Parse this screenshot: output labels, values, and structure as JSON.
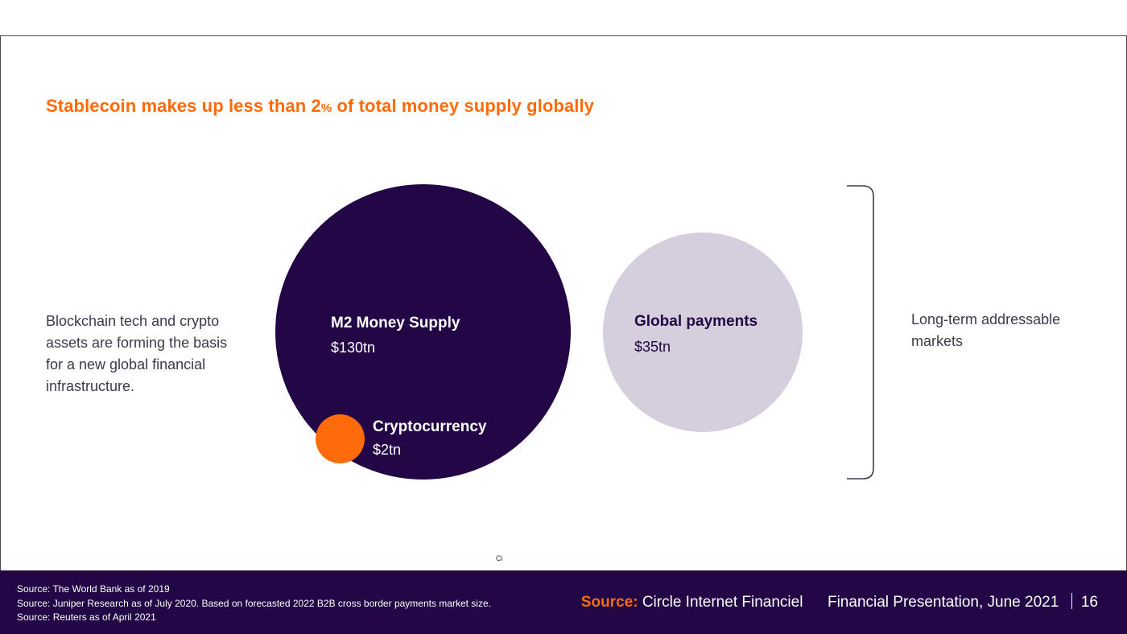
{
  "slide": {
    "headline_before": "Stablecoin makes up less than 2",
    "headline_pct": "%",
    "headline_after": " of total money supply globally",
    "intro_text": "Blockchain tech and crypto assets are forming the basis for a new global financial infrastructure.",
    "bubbles": {
      "m2": {
        "title": "M2 Money Supply",
        "value": "$130tn"
      },
      "crypto": {
        "title": "Cryptocurrency",
        "value": "$2tn"
      },
      "payments": {
        "title": "Global payments",
        "value": "$35tn"
      }
    },
    "bracket_label": "Long-term addressable markets",
    "tiny_mark": "Ci"
  },
  "footer": {
    "sources": [
      "Source: The World Bank as of 2019",
      "Source: Juniper Research as of July 2020. Based on forecasted 2022 B2B cross border payments market size.",
      "Source: Reuters as of April 2021"
    ],
    "source_label": "Source:",
    "source_name": "Circle Internet Financiel",
    "presentation": "Financial Presentation, June 2021",
    "page_number": "16"
  },
  "colors": {
    "accent_orange": "#ff6b0a",
    "deep_purple": "#220645",
    "lavender": "#d4cedd"
  }
}
